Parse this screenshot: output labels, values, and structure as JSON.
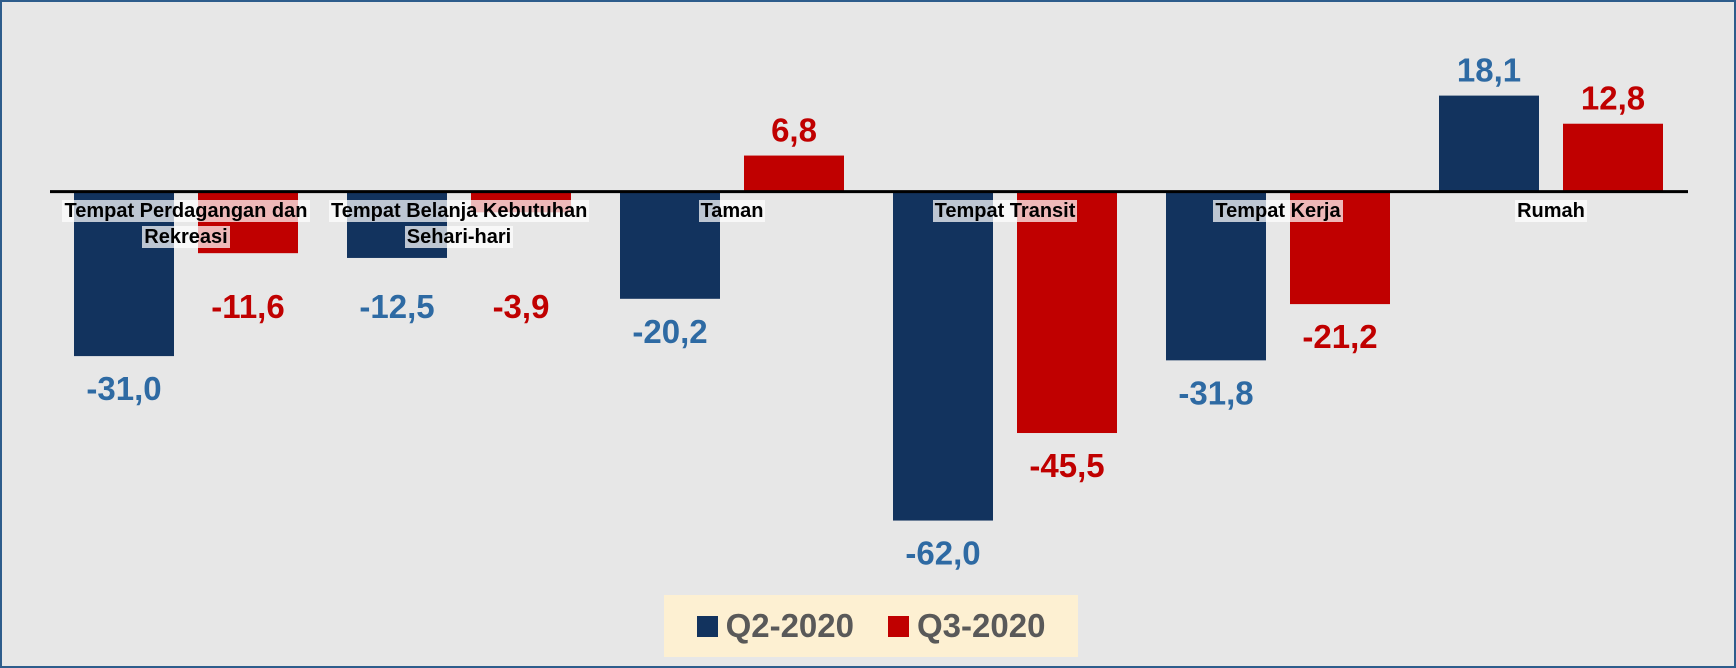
{
  "chart_data": {
    "type": "bar",
    "categories": [
      "Tempat Perdagangan dan Rekreasi",
      "Tempat Belanja Kebutuhan Sehari-hari",
      "Taman",
      "Tempat Transit",
      "Tempat Kerja",
      "Rumah"
    ],
    "series": [
      {
        "name": "Q2-2020",
        "color": "#12335e",
        "label_color": "#2e6aa3",
        "values": [
          -31.0,
          -12.5,
          -20.2,
          -62.0,
          -31.8,
          18.1
        ],
        "value_labels": [
          "-31,0",
          "-12,5",
          "-20,2",
          "-62,0",
          "-31,8",
          "18,1"
        ]
      },
      {
        "name": "Q3-2020",
        "color": "#c00000",
        "label_color": "#c00000",
        "values": [
          -11.6,
          -3.9,
          6.8,
          -45.5,
          -21.2,
          12.8
        ],
        "value_labels": [
          "-11,6",
          "-3,9",
          "6,8",
          "-45,5",
          "-21,2",
          "12,8"
        ]
      }
    ],
    "ylim": [
      -70,
      25
    ]
  }
}
